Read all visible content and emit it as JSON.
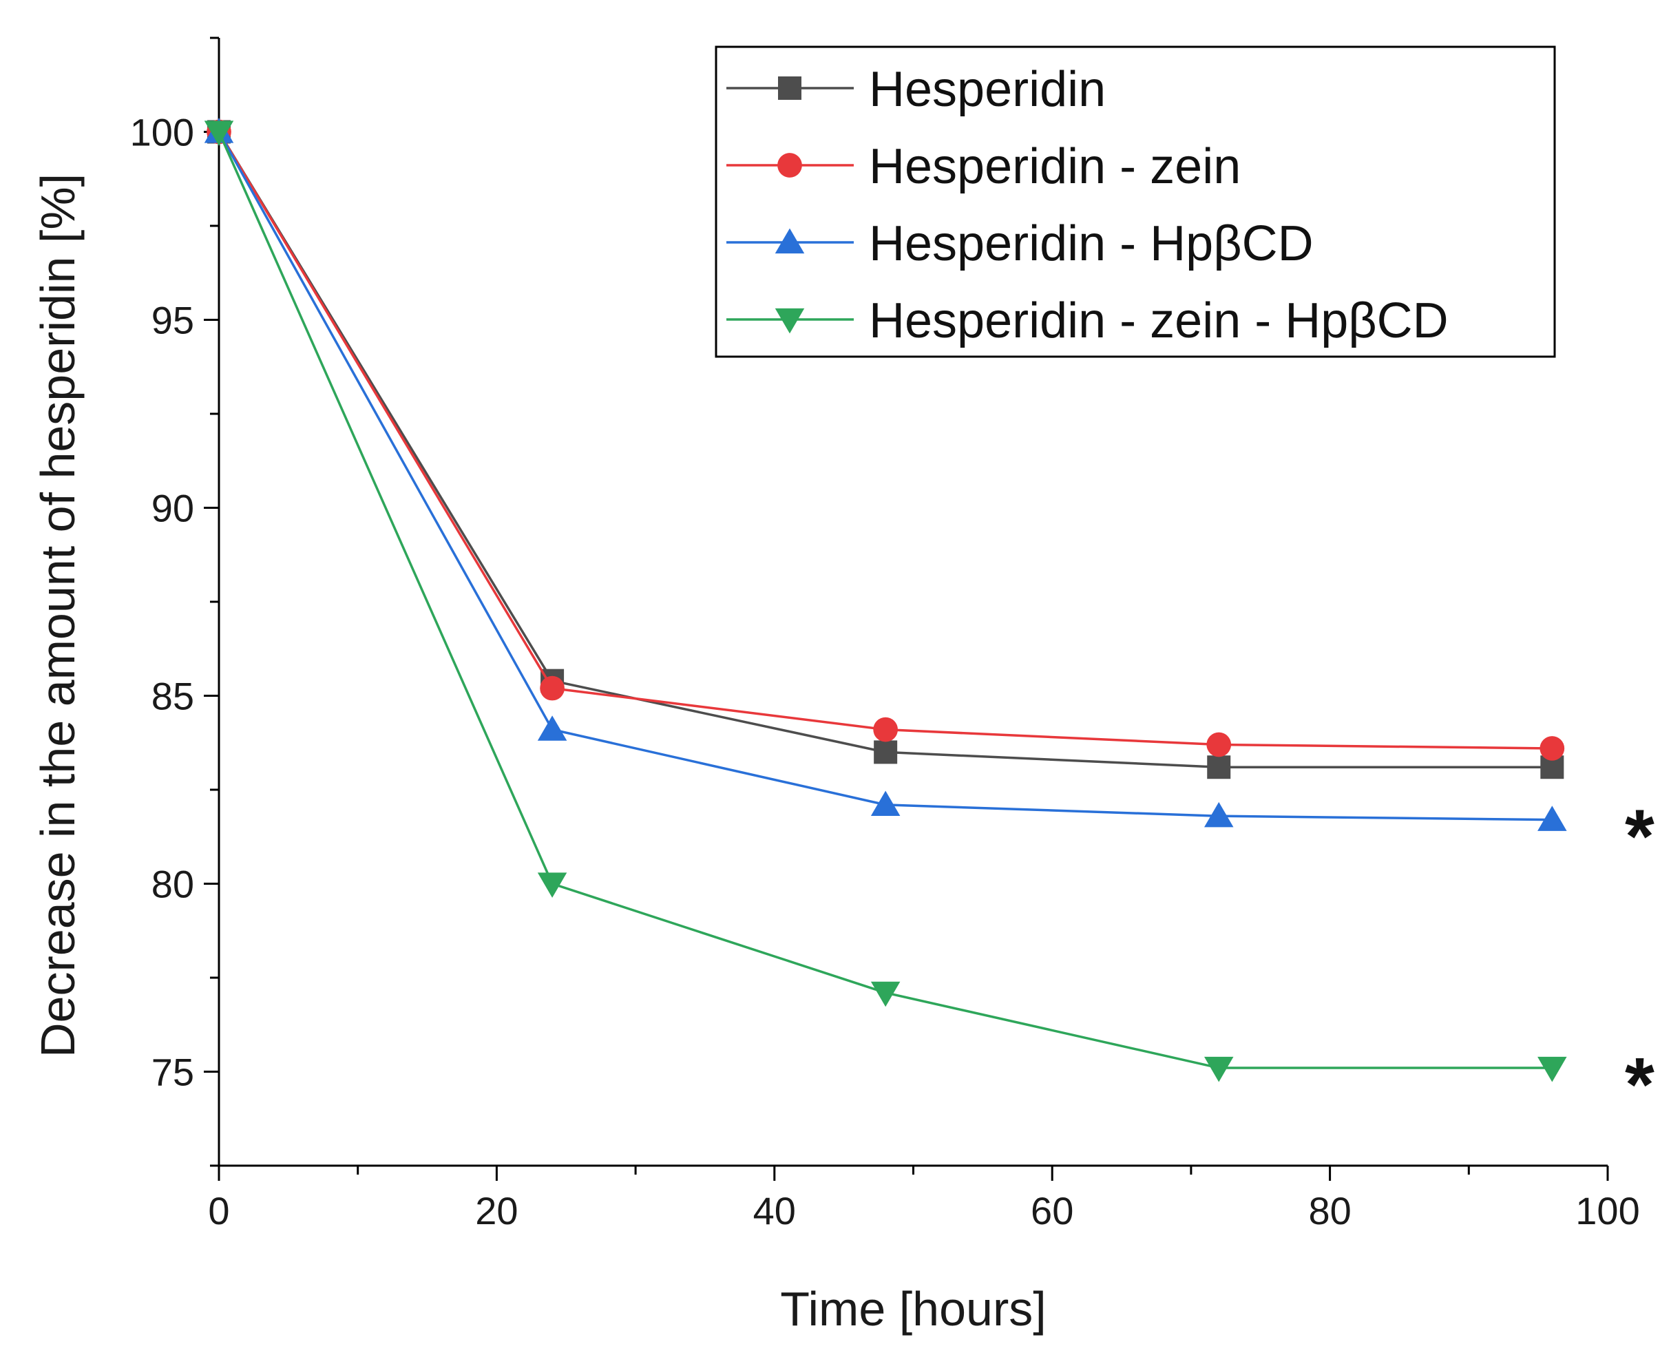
{
  "chart_data": {
    "type": "line",
    "title": "",
    "xlabel": "Time [hours]",
    "ylabel": "Decrease in the amount of hesperidin [%]",
    "xlim": [
      0,
      100
    ],
    "ylim": [
      72.5,
      102.5
    ],
    "x_ticks": [
      0,
      20,
      40,
      60,
      80,
      100
    ],
    "x_tick_labels": [
      "0",
      "20",
      "40",
      "60",
      "80",
      "100"
    ],
    "y_ticks": [
      75,
      80,
      85,
      90,
      95,
      100
    ],
    "y_tick_labels": [
      "75",
      "80",
      "85",
      "90",
      "95",
      "100"
    ],
    "grid": false,
    "legend_position": "top-right",
    "x": [
      0,
      24,
      48,
      72,
      96
    ],
    "series": [
      {
        "name": "Hesperidin",
        "color": "#4d4d4d",
        "marker": "square",
        "values": [
          100.0,
          85.4,
          83.5,
          83.1,
          83.1
        ]
      },
      {
        "name": "Hesperidin - zein",
        "color": "#e8383b",
        "marker": "circle",
        "values": [
          100.0,
          85.2,
          84.1,
          83.7,
          83.6
        ]
      },
      {
        "name": "Hesperidin - HpβCD",
        "color": "#2970d8",
        "marker": "triangle-up",
        "values": [
          100.0,
          84.1,
          82.1,
          81.8,
          81.7
        ]
      },
      {
        "name": "Hesperidin - zein - HpβCD",
        "color": "#2ea65a",
        "marker": "triangle-down",
        "values": [
          100.0,
          80.0,
          77.1,
          75.1,
          75.1
        ]
      }
    ],
    "annotations": [
      {
        "text": "*",
        "series": "Hesperidin - HpβCD"
      },
      {
        "text": "*",
        "series": "Hesperidin - zein - HpβCD"
      }
    ]
  }
}
